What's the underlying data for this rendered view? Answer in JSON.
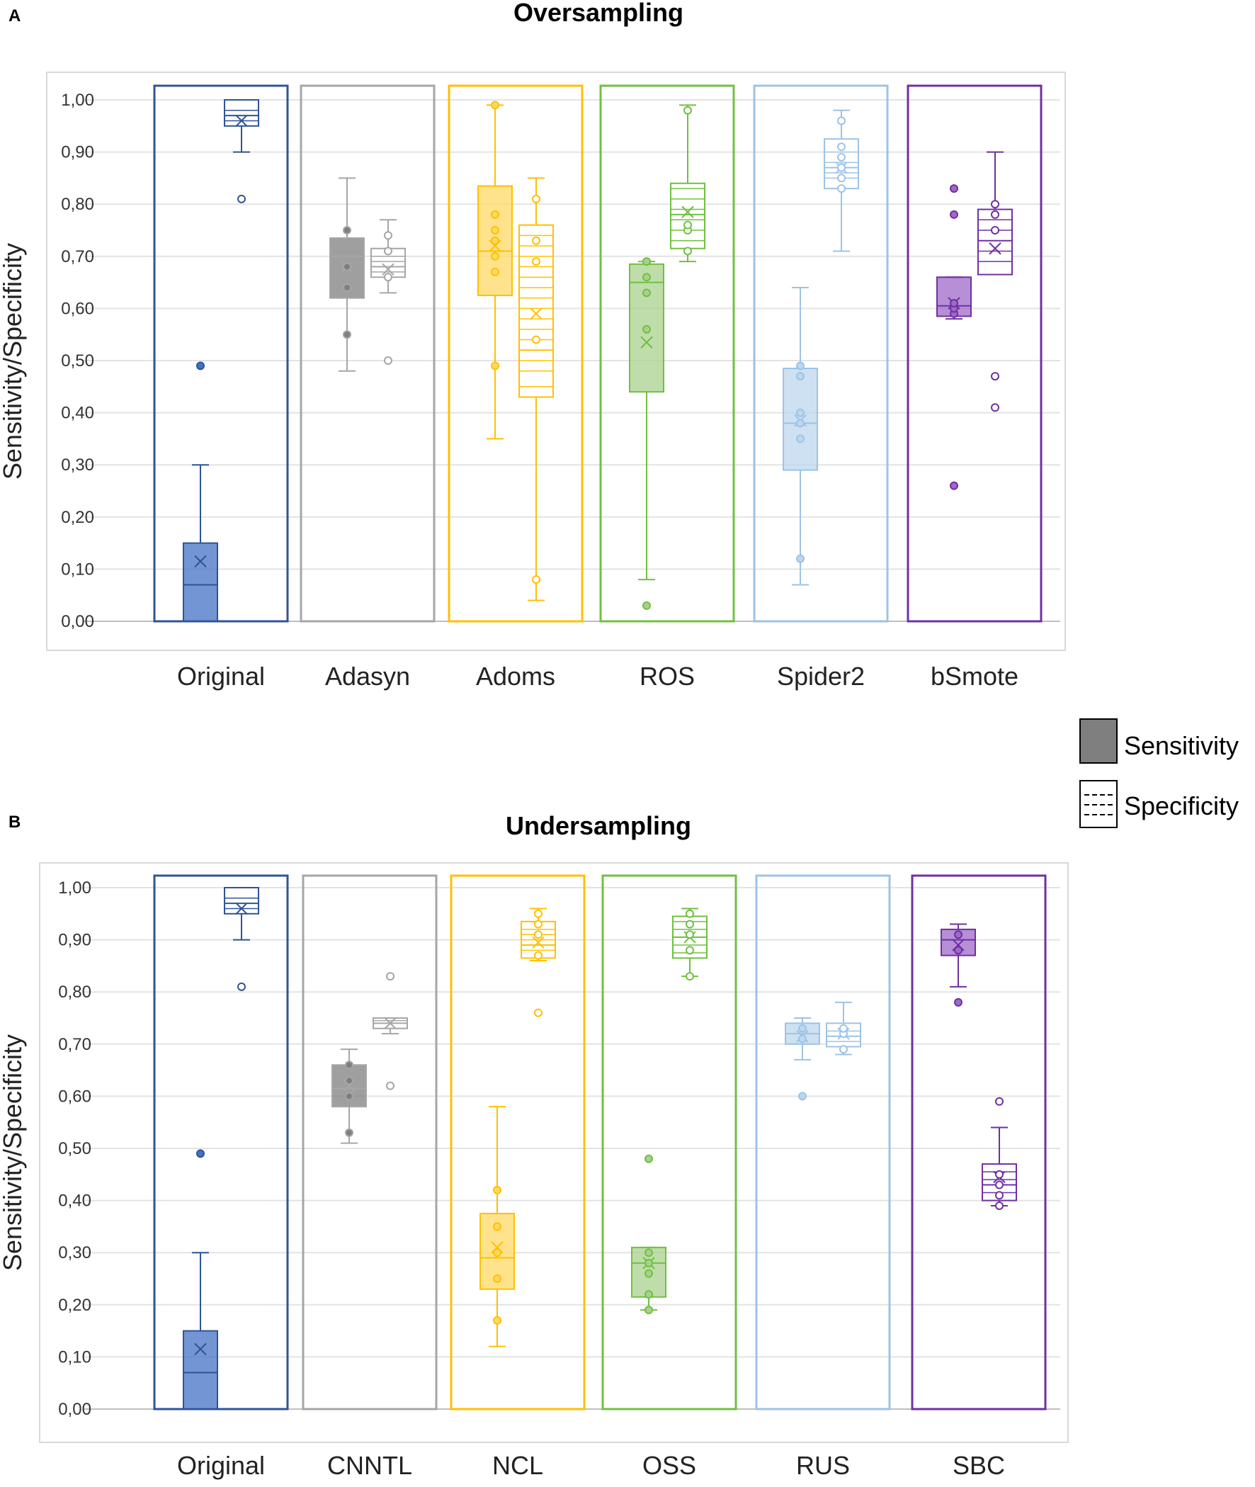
{
  "legend": {
    "sensitivity_label": "Sensitivity",
    "specificity_label": "Specificity"
  },
  "chart_data": [
    {
      "type": "boxplot",
      "panel_label": "A",
      "title": "Oversampling",
      "ylabel": "Sensitivity/Specificity",
      "ylim": [
        0,
        1
      ],
      "yticks": [
        "0,00",
        "0,10",
        "0,20",
        "0,30",
        "0,40",
        "0,50",
        "0,60",
        "0,70",
        "0,80",
        "0,90",
        "1,00"
      ],
      "groups": [
        {
          "label": "Original",
          "color": "#2F5496",
          "fill": "#4472C4",
          "sensitivity": {
            "whisker_low": 0.0,
            "q1": 0.0,
            "median": 0.07,
            "q3": 0.15,
            "whisker_high": 0.3,
            "mean": 0.115,
            "points": [
              0.49
            ]
          },
          "specificity": {
            "whisker_low": 0.9,
            "q1": 0.95,
            "median": 0.97,
            "q3": 1.0,
            "whisker_high": 1.0,
            "mean": 0.96,
            "points": [
              0.81
            ],
            "lines": [
              0.96,
              0.98
            ]
          }
        },
        {
          "label": "Adasyn",
          "color": "#A6A6A6",
          "fill": "#7F7F7F",
          "sensitivity": {
            "whisker_low": 0.48,
            "q1": 0.62,
            "median": 0.7,
            "q3": 0.735,
            "whisker_high": 0.85,
            "mean": 0.68,
            "points": [
              0.55,
              0.64,
              0.68,
              0.75
            ]
          },
          "specificity": {
            "whisker_low": 0.63,
            "q1": 0.66,
            "median": 0.68,
            "q3": 0.715,
            "whisker_high": 0.77,
            "mean": 0.675,
            "points": [
              0.5,
              0.66,
              0.71,
              0.74
            ],
            "lines": [
              0.67,
              0.69,
              0.7
            ]
          }
        },
        {
          "label": "Adoms",
          "color": "#FFC000",
          "fill": "#FFD966",
          "sensitivity": {
            "whisker_low": 0.35,
            "q1": 0.625,
            "median": 0.71,
            "q3": 0.835,
            "whisker_high": 0.99,
            "mean": 0.72,
            "points": [
              0.49,
              0.67,
              0.7,
              0.73,
              0.75,
              0.78,
              0.99
            ]
          },
          "specificity": {
            "whisker_low": 0.04,
            "q1": 0.43,
            "median": 0.52,
            "q3": 0.76,
            "whisker_high": 0.85,
            "mean": 0.59,
            "points": [
              0.08,
              0.54,
              0.69,
              0.73,
              0.81
            ],
            "lines": [
              0.45,
              0.48,
              0.5,
              0.54,
              0.56,
              0.58,
              0.6,
              0.62,
              0.64,
              0.66,
              0.68,
              0.7,
              0.72,
              0.74
            ]
          }
        },
        {
          "label": "ROS",
          "color": "#70C040",
          "fill": "#A9D18E",
          "sensitivity": {
            "whisker_low": 0.08,
            "q1": 0.44,
            "median": 0.65,
            "q3": 0.685,
            "whisker_high": 0.69,
            "mean": 0.535,
            "points": [
              0.03,
              0.56,
              0.63,
              0.66,
              0.69
            ]
          },
          "specificity": {
            "whisker_low": 0.69,
            "q1": 0.715,
            "median": 0.78,
            "q3": 0.84,
            "whisker_high": 0.99,
            "mean": 0.785,
            "points": [
              0.71,
              0.75,
              0.76,
              0.98
            ],
            "lines": [
              0.73,
              0.75,
              0.77,
              0.79,
              0.81,
              0.83
            ]
          }
        },
        {
          "label": "Spider2",
          "color": "#9DC3E6",
          "fill": "#BDD7EE",
          "sensitivity": {
            "whisker_low": 0.07,
            "q1": 0.29,
            "median": 0.38,
            "q3": 0.485,
            "whisker_high": 0.64,
            "mean": 0.385,
            "points": [
              0.12,
              0.35,
              0.38,
              0.4,
              0.47,
              0.49
            ]
          },
          "specificity": {
            "whisker_low": 0.71,
            "q1": 0.83,
            "median": 0.87,
            "q3": 0.925,
            "whisker_high": 0.98,
            "mean": 0.87,
            "points": [
              0.83,
              0.85,
              0.87,
              0.89,
              0.91,
              0.96
            ],
            "lines": [
              0.85,
              0.86,
              0.88,
              0.9
            ]
          }
        },
        {
          "label": "bSmote",
          "color": "#7030A0",
          "fill": "#9E6AC8",
          "sensitivity": {
            "whisker_low": 0.58,
            "q1": 0.585,
            "median": 0.605,
            "q3": 0.66,
            "whisker_high": 0.66,
            "mean": 0.61,
            "points": [
              0.26,
              0.59,
              0.6,
              0.61,
              0.78,
              0.83
            ]
          },
          "specificity": {
            "whisker_low": 0.665,
            "q1": 0.665,
            "median": 0.73,
            "q3": 0.79,
            "whisker_high": 0.9,
            "mean": 0.715,
            "points": [
              0.41,
              0.47,
              0.75,
              0.78,
              0.8
            ],
            "lines": [
              0.69,
              0.71,
              0.75,
              0.77
            ]
          }
        }
      ]
    },
    {
      "type": "boxplot",
      "panel_label": "B",
      "title": "Undersampling",
      "ylabel": "Sensitivity/Specificity",
      "ylim": [
        0,
        1
      ],
      "yticks": [
        "0,00",
        "0,10",
        "0,20",
        "0,30",
        "0,40",
        "0,50",
        "0,60",
        "0,70",
        "0,80",
        "0,90",
        "1,00"
      ],
      "groups": [
        {
          "label": "Original",
          "color": "#2F5496",
          "fill": "#4472C4",
          "sensitivity": {
            "whisker_low": 0.0,
            "q1": 0.0,
            "median": 0.07,
            "q3": 0.15,
            "whisker_high": 0.3,
            "mean": 0.115,
            "points": [
              0.49
            ]
          },
          "specificity": {
            "whisker_low": 0.9,
            "q1": 0.95,
            "median": 0.97,
            "q3": 1.0,
            "whisker_high": 1.0,
            "mean": 0.96,
            "points": [
              0.81
            ],
            "lines": [
              0.96,
              0.98
            ]
          }
        },
        {
          "label": "CNNTL",
          "color": "#A6A6A6",
          "fill": "#7F7F7F",
          "sensitivity": {
            "whisker_low": 0.51,
            "q1": 0.58,
            "median": 0.615,
            "q3": 0.66,
            "whisker_high": 0.69,
            "mean": 0.62,
            "points": [
              0.53,
              0.6,
              0.63,
              0.66
            ]
          },
          "specificity": {
            "whisker_low": 0.72,
            "q1": 0.73,
            "median": 0.74,
            "q3": 0.75,
            "whisker_high": 0.75,
            "mean": 0.74,
            "points": [
              0.62,
              0.83
            ],
            "lines": [
              0.745
            ]
          }
        },
        {
          "label": "NCL",
          "color": "#FFC000",
          "fill": "#FFD966",
          "sensitivity": {
            "whisker_low": 0.12,
            "q1": 0.23,
            "median": 0.29,
            "q3": 0.375,
            "whisker_high": 0.58,
            "mean": 0.31,
            "points": [
              0.17,
              0.25,
              0.3,
              0.35,
              0.42
            ]
          },
          "specificity": {
            "whisker_low": 0.86,
            "q1": 0.865,
            "median": 0.89,
            "q3": 0.935,
            "whisker_high": 0.96,
            "mean": 0.895,
            "points": [
              0.76,
              0.87,
              0.91,
              0.93,
              0.95
            ],
            "lines": [
              0.88,
              0.9,
              0.91,
              0.92
            ]
          }
        },
        {
          "label": "OSS",
          "color": "#70C040",
          "fill": "#A9D18E",
          "sensitivity": {
            "whisker_low": 0.19,
            "q1": 0.215,
            "median": 0.28,
            "q3": 0.31,
            "whisker_high": 0.31,
            "mean": 0.28,
            "points": [
              0.19,
              0.22,
              0.26,
              0.28,
              0.3,
              0.48
            ]
          },
          "specificity": {
            "whisker_low": 0.83,
            "q1": 0.865,
            "median": 0.905,
            "q3": 0.945,
            "whisker_high": 0.96,
            "mean": 0.905,
            "points": [
              0.83,
              0.88,
              0.91,
              0.93,
              0.95
            ],
            "lines": [
              0.875,
              0.89,
              0.92,
              0.935
            ]
          }
        },
        {
          "label": "RUS",
          "color": "#9DC3E6",
          "fill": "#BDD7EE",
          "sensitivity": {
            "whisker_low": 0.67,
            "q1": 0.7,
            "median": 0.72,
            "q3": 0.74,
            "whisker_high": 0.75,
            "mean": 0.715,
            "points": [
              0.6,
              0.71,
              0.73
            ]
          },
          "specificity": {
            "whisker_low": 0.68,
            "q1": 0.695,
            "median": 0.715,
            "q3": 0.74,
            "whisker_high": 0.78,
            "mean": 0.72,
            "points": [
              0.69,
              0.72,
              0.73
            ],
            "lines": [
              0.705,
              0.725
            ]
          }
        },
        {
          "label": "SBC",
          "color": "#7030A0",
          "fill": "#9E6AC8",
          "sensitivity": {
            "whisker_low": 0.81,
            "q1": 0.87,
            "median": 0.9,
            "q3": 0.92,
            "whisker_high": 0.93,
            "mean": 0.89,
            "points": [
              0.78,
              0.88,
              0.91
            ]
          },
          "specificity": {
            "whisker_low": 0.39,
            "q1": 0.4,
            "median": 0.43,
            "q3": 0.47,
            "whisker_high": 0.54,
            "mean": 0.445,
            "points": [
              0.39,
              0.41,
              0.43,
              0.45,
              0.59
            ],
            "lines": [
              0.415,
              0.44,
              0.455
            ]
          }
        }
      ]
    }
  ]
}
